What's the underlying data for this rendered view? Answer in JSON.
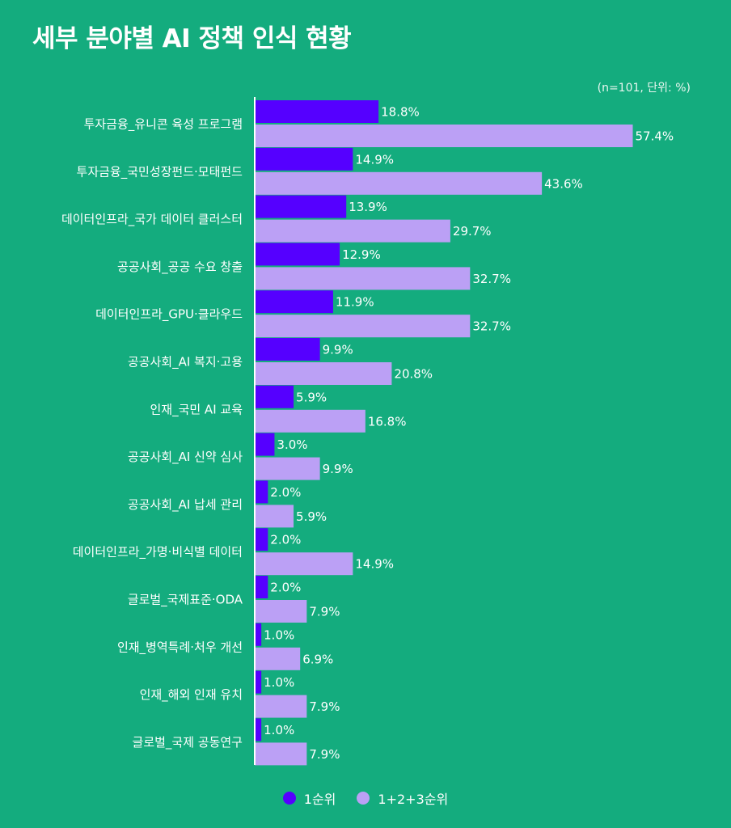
{
  "title": "세부 분야별 AI 정책 인식 현황",
  "unit_note": "(n=101, 단위: %)",
  "colors": {
    "background": "#14ac7e",
    "series1": "#5500ff",
    "series2": "#bba0f5",
    "text": "#ffffff"
  },
  "chart_data": {
    "type": "bar",
    "orientation": "horizontal",
    "title": "세부 분야별 AI 정책 인식 현황",
    "categories": [
      "투자금융_유니콘 육성 프로그램",
      "투자금융_국민성장펀드·모태펀드",
      "데이터인프라_국가 데이터 클러스터",
      "공공사회_공공 수요 창출",
      "데이터인프라_GPU·클라우드",
      "공공사회_AI 복지·고용",
      "인재_국민 AI 교육",
      "공공사회_AI 신약 심사",
      "공공사회_AI 납세 관리",
      "데이터인프라_가명·비식별 데이터",
      "글로벌_국제표준·ODA",
      "인재_병역특례·처우 개선",
      "인재_해외 인재 유치",
      "글로벌_국제 공동연구"
    ],
    "series": [
      {
        "name": "1순위",
        "color": "#5500ff",
        "values": [
          18.8,
          14.9,
          13.9,
          12.9,
          11.9,
          9.9,
          5.9,
          3.0,
          2.0,
          2.0,
          2.0,
          1.0,
          1.0,
          1.0
        ]
      },
      {
        "name": "1+2+3순위",
        "color": "#bba0f5",
        "values": [
          57.4,
          43.6,
          29.7,
          32.7,
          32.7,
          20.8,
          16.8,
          9.9,
          5.9,
          14.9,
          7.9,
          6.9,
          7.9,
          7.9
        ]
      }
    ],
    "value_labels": [
      [
        "18.8%",
        "14.9%",
        "13.9%",
        "12.9%",
        "11.9%",
        "9.9%",
        "5.9%",
        "3.0%",
        "2.0%",
        "2.0%",
        "2.0%",
        "1.0%",
        "1.0%",
        "1.0%"
      ],
      [
        "57.4%",
        "43.6%",
        "29.7%",
        "32.7%",
        "32.7%",
        "20.8%",
        "16.8%",
        "9.9%",
        "5.9%",
        "14.9%",
        "7.9%",
        "6.9%",
        "7.9%",
        "7.9%"
      ]
    ],
    "xlim": [
      0,
      60
    ],
    "grid": false,
    "legend_position": "bottom-center"
  },
  "legend": [
    {
      "label": "1순위",
      "color": "#5500ff"
    },
    {
      "label": "1+2+3순위",
      "color": "#bba0f5"
    }
  ]
}
